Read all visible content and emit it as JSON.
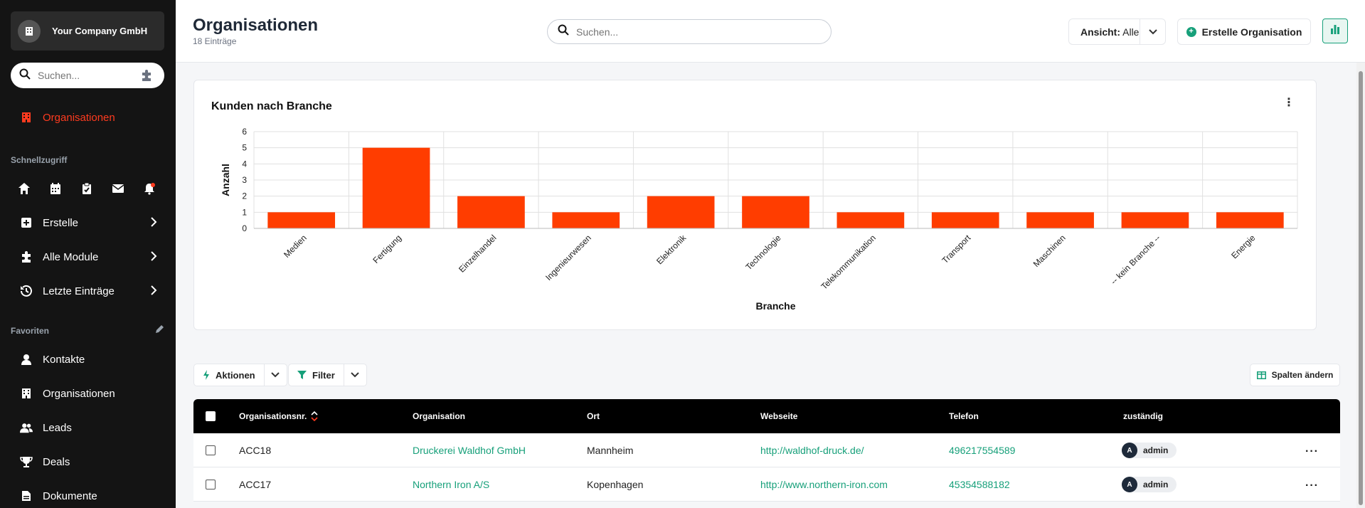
{
  "sidebar": {
    "company": "Your Company GmbH",
    "search_placeholder": "Suchen...",
    "active_item": "Organisationen",
    "quick_section": "Schnellzugriff",
    "menu": [
      {
        "label": "Erstelle",
        "icon": "plus-square-icon"
      },
      {
        "label": "Alle Module",
        "icon": "puzzle-icon"
      },
      {
        "label": "Letzte Einträge",
        "icon": "history-icon"
      }
    ],
    "favorites_section": "Favoriten",
    "favorites": [
      {
        "label": "Kontakte",
        "icon": "person-icon"
      },
      {
        "label": "Organisationen",
        "icon": "building-icon"
      },
      {
        "label": "Leads",
        "icon": "users-icon"
      },
      {
        "label": "Deals",
        "icon": "trophy-icon"
      },
      {
        "label": "Dokumente",
        "icon": "document-icon"
      }
    ]
  },
  "header": {
    "title": "Organisationen",
    "subtitle": "18 Einträge",
    "search_placeholder": "Suchen...",
    "view_label": "Ansicht:",
    "view_value": "Alle",
    "create_label": "Erstelle Organisation"
  },
  "chart_data": {
    "type": "bar",
    "title": "Kunden nach Branche",
    "xlabel": "Branche",
    "ylabel": "Anzahl",
    "ylim": [
      0,
      6
    ],
    "yticks": [
      0,
      1,
      2,
      3,
      4,
      5,
      6
    ],
    "categories": [
      "Medien",
      "Fertigung",
      "Einzelhandel",
      "Ingenieurwesen",
      "Elektronik",
      "Technologie",
      "Telekommunikation",
      "Transport",
      "Maschinen",
      "-- kein Branche --",
      "Energie"
    ],
    "values": [
      1,
      5,
      2,
      1,
      2,
      2,
      1,
      1,
      1,
      1,
      1
    ],
    "color": "#ff3d00",
    "grid": true
  },
  "toolbar": {
    "actions_label": "Aktionen",
    "filter_label": "Filter",
    "columns_label": "Spalten ändern"
  },
  "table": {
    "columns": [
      "Organisationsnr.",
      "Organisation",
      "Ort",
      "Webseite",
      "Telefon",
      "zuständig"
    ],
    "rows": [
      {
        "nr": "ACC18",
        "org": "Druckerei Waldhof GmbH",
        "ort": "Mannheim",
        "web": "http://waldhof-druck.de/",
        "tel": "496217554589",
        "owner": "admin",
        "avatar": "A"
      },
      {
        "nr": "ACC17",
        "org": "Northern Iron A/S",
        "ort": "Kopenhagen",
        "web": "http://www.northern-iron.com",
        "tel": "45354588182",
        "owner": "admin",
        "avatar": "A"
      }
    ]
  }
}
